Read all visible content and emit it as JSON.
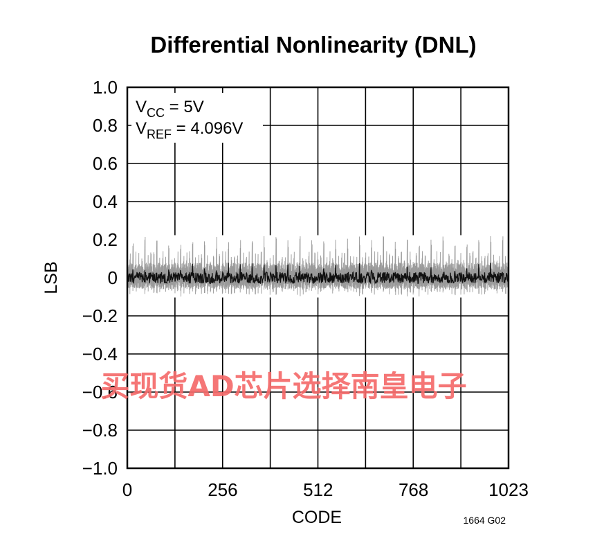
{
  "chart_data": {
    "type": "line",
    "title": "Differential Nonlinearity (DNL)",
    "xlabel": "CODE",
    "ylabel": "LSB",
    "xlim": [
      0,
      1023
    ],
    "ylim": [
      -1.0,
      1.0
    ],
    "x_ticks": [
      "0",
      "256",
      "512",
      "768",
      "1023"
    ],
    "y_ticks": [
      "1.0",
      "0.8",
      "0.6",
      "0.4",
      "0.2",
      "0",
      "−0.2",
      "−0.4",
      "−0.6",
      "−0.8",
      "−1.0"
    ],
    "grid": true,
    "annotation": {
      "line1_main": "V",
      "line1_sub": "CC",
      "line1_rest": " = 5V",
      "line2_main": "V",
      "line2_sub": "REF",
      "line2_rest": " = 4.096V"
    },
    "figure_id": "1664 G02",
    "dnl_envelope_lsb": {
      "max": 0.22,
      "min": -0.1
    },
    "series": [
      {
        "values_description_sampled": [
          [
            0,
            0.02
          ],
          [
            16,
            0.21
          ],
          [
            32,
            0.19
          ],
          [
            64,
            0.2
          ],
          [
            96,
            0.18
          ],
          [
            128,
            0.19
          ],
          [
            160,
            0.2
          ],
          [
            192,
            0.19
          ],
          [
            224,
            0.21
          ],
          [
            256,
            0.19
          ],
          [
            288,
            0.19
          ],
          [
            320,
            0.2
          ],
          [
            352,
            0.19
          ],
          [
            384,
            0.21
          ],
          [
            416,
            0.18
          ],
          [
            448,
            0.2
          ],
          [
            480,
            0.19
          ],
          [
            512,
            0.21
          ],
          [
            544,
            0.19
          ],
          [
            576,
            0.2
          ],
          [
            608,
            0.18
          ],
          [
            640,
            0.21
          ],
          [
            672,
            0.19
          ],
          [
            704,
            0.2
          ],
          [
            736,
            0.19
          ],
          [
            768,
            0.21
          ],
          [
            800,
            0.19
          ],
          [
            832,
            0.2
          ],
          [
            864,
            0.18
          ],
          [
            896,
            0.2
          ],
          [
            928,
            0.19
          ],
          [
            960,
            0.21
          ],
          [
            992,
            0.19
          ],
          [
            1023,
            0.01
          ]
        ]
      }
    ]
  },
  "watermark": "买现货AD芯片选择南皇电子"
}
